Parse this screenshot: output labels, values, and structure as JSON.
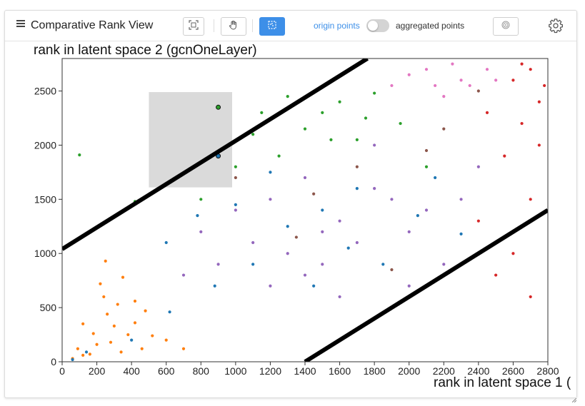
{
  "header": {
    "title": "Comparative Rank View",
    "toggle_left_label": "origin points",
    "toggle_right_label": "aggregated points",
    "toggle_state": "origin points"
  },
  "colors": {
    "accent": "#3d8fe8",
    "categories": [
      "#ff7f0e",
      "#1f77b4",
      "#2ca02c",
      "#9467bd",
      "#8c564b",
      "#e377c2",
      "#d62728"
    ]
  },
  "chart_data": {
    "type": "scatter",
    "title": "",
    "xlabel": "rank in latent space 1 (",
    "ylabel": "rank in latent space 2 (gcnOneLayer)",
    "xlim": [
      0,
      2800
    ],
    "ylim": [
      0,
      2800
    ],
    "x_ticks": [
      "0",
      "200",
      "400",
      "600",
      "800",
      "1000",
      "1200",
      "1400",
      "1600",
      "1800",
      "2000",
      "2200",
      "2400",
      "2600",
      "2800"
    ],
    "y_ticks": [
      "0",
      "500",
      "1000",
      "1500",
      "2000",
      "2500"
    ],
    "grid": false,
    "reference_lines": [
      {
        "from": [
          0,
          1040
        ],
        "to": [
          1760,
          2800
        ]
      },
      {
        "from": [
          1400,
          0
        ],
        "to": [
          2800,
          1400
        ]
      }
    ],
    "selection_box": {
      "x": [
        500,
        980
      ],
      "y": [
        1610,
        2490
      ]
    },
    "series": [
      {
        "values": [
          [
            120,
            60
          ],
          [
            200,
            160
          ],
          [
            300,
            330
          ],
          [
            380,
            250
          ],
          [
            260,
            440
          ],
          [
            90,
            120
          ],
          [
            160,
            70
          ],
          [
            320,
            530
          ],
          [
            420,
            360
          ],
          [
            240,
            600
          ],
          [
            460,
            120
          ],
          [
            350,
            780
          ],
          [
            180,
            260
          ],
          [
            280,
            180
          ],
          [
            520,
            240
          ],
          [
            60,
            30
          ],
          [
            420,
            560
          ],
          [
            250,
            930
          ],
          [
            600,
            200
          ],
          [
            340,
            90
          ],
          [
            120,
            350
          ],
          [
            480,
            470
          ],
          [
            220,
            720
          ],
          [
            700,
            120
          ]
        ]
      },
      {
        "values": [
          [
            60,
            20
          ],
          [
            140,
            90
          ],
          [
            400,
            200
          ],
          [
            620,
            460
          ],
          [
            880,
            700
          ],
          [
            1100,
            900
          ],
          [
            1300,
            1250
          ],
          [
            1500,
            1400
          ],
          [
            1700,
            1600
          ],
          [
            900,
            1900
          ],
          [
            1200,
            1750
          ],
          [
            1650,
            1050
          ],
          [
            2050,
            1350
          ],
          [
            2300,
            1180
          ],
          [
            780,
            1350
          ],
          [
            1450,
            700
          ],
          [
            600,
            1100
          ],
          [
            1000,
            1450
          ],
          [
            1850,
            900
          ],
          [
            2150,
            1700
          ]
        ]
      },
      {
        "values": [
          [
            100,
            1910
          ],
          [
            420,
            1480
          ],
          [
            900,
            2350
          ],
          [
            1100,
            2100
          ],
          [
            1300,
            2450
          ],
          [
            1500,
            2300
          ],
          [
            1700,
            2050
          ],
          [
            1800,
            2480
          ],
          [
            1950,
            2200
          ],
          [
            1250,
            1900
          ],
          [
            1000,
            1800
          ],
          [
            1400,
            2150
          ],
          [
            1600,
            2400
          ],
          [
            2100,
            1800
          ],
          [
            800,
            1500
          ],
          [
            1150,
            2300
          ],
          [
            1550,
            2050
          ],
          [
            1750,
            2250
          ]
        ]
      },
      {
        "values": [
          [
            1000,
            1400
          ],
          [
            1200,
            1500
          ],
          [
            1400,
            1700
          ],
          [
            1600,
            1300
          ],
          [
            1800,
            1600
          ],
          [
            2000,
            1200
          ],
          [
            1300,
            1000
          ],
          [
            1100,
            1100
          ],
          [
            900,
            900
          ],
          [
            1500,
            900
          ],
          [
            1700,
            1100
          ],
          [
            1900,
            1500
          ],
          [
            2100,
            1400
          ],
          [
            2300,
            1500
          ],
          [
            2200,
            900
          ],
          [
            1400,
            800
          ],
          [
            800,
            1200
          ],
          [
            1200,
            700
          ],
          [
            1600,
            600
          ],
          [
            700,
            800
          ],
          [
            2000,
            700
          ],
          [
            2400,
            1800
          ],
          [
            1800,
            2000
          ],
          [
            1500,
            1200
          ]
        ]
      },
      {
        "values": [
          [
            1350,
            1150
          ],
          [
            1700,
            1800
          ],
          [
            2200,
            2150
          ],
          [
            2400,
            2500
          ],
          [
            1900,
            850
          ],
          [
            1000,
            1700
          ],
          [
            2100,
            1950
          ],
          [
            1450,
            1550
          ]
        ]
      },
      {
        "values": [
          [
            1900,
            2550
          ],
          [
            2100,
            2700
          ],
          [
            2300,
            2600
          ],
          [
            2200,
            2450
          ],
          [
            2450,
            2700
          ],
          [
            2000,
            2650
          ],
          [
            2350,
            2550
          ],
          [
            2150,
            2550
          ],
          [
            2500,
            2600
          ],
          [
            2250,
            2750
          ]
        ]
      },
      {
        "values": [
          [
            2600,
            2600
          ],
          [
            2700,
            2700
          ],
          [
            2750,
            2400
          ],
          [
            2650,
            2200
          ],
          [
            2550,
            1900
          ],
          [
            2700,
            1500
          ],
          [
            2600,
            1000
          ],
          [
            2500,
            800
          ],
          [
            2750,
            2000
          ],
          [
            2450,
            2300
          ],
          [
            2650,
            2750
          ],
          [
            2780,
            2550
          ],
          [
            2400,
            1300
          ],
          [
            2700,
            600
          ]
        ]
      }
    ]
  }
}
